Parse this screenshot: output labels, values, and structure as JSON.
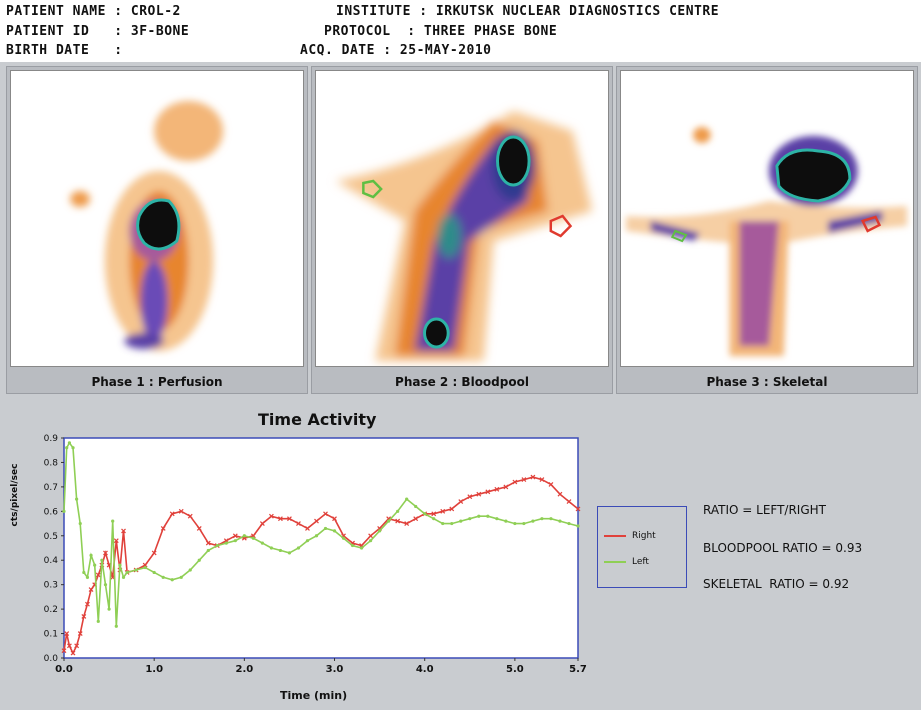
{
  "header": {
    "patient_name": "PATIENT NAME : CROL-2",
    "patient_id": "PATIENT ID   : 3F-BONE",
    "birth_date": "BIRTH DATE   :",
    "institute": "INSTITUTE : IRKUTSK NUCLEAR DIAGNOSTICS CENTRE",
    "protocol": "PROTOCOL  : THREE PHASE BONE",
    "acq_date": "ACQ. DATE : 25-MAY-2010"
  },
  "panels": [
    {
      "label": "Phase 1 : Perfusion"
    },
    {
      "label": "Phase 2 : Bloodpool"
    },
    {
      "label": "Phase 3 : Skeletal"
    }
  ],
  "colors": {
    "right": "#e0413b",
    "left": "#8fcf55",
    "legend_border": "#3b4bb7"
  },
  "chart_data": {
    "type": "line",
    "title": "Time Activity",
    "xlabel": "Time (min)",
    "ylabel": "cts/pixel/sec",
    "xlim": [
      0,
      5.7
    ],
    "ylim": [
      0,
      0.9
    ],
    "x_ticks": [
      "0.0",
      "1.0",
      "2.0",
      "3.0",
      "4.0",
      "5.0",
      "5.7"
    ],
    "x_tick_values": [
      0,
      1,
      2,
      3,
      4,
      5,
      5.7
    ],
    "y_ticks": [
      "0.0",
      "0.1",
      "0.2",
      "0.3",
      "0.4",
      "0.5",
      "0.6",
      "0.7",
      "0.8",
      "0.9"
    ],
    "legend_position": "right",
    "series": [
      {
        "name": "Right",
        "color": "#e0413b",
        "marker": "x",
        "points": [
          [
            0,
            0.03
          ],
          [
            0.03,
            0.1
          ],
          [
            0.06,
            0.05
          ],
          [
            0.1,
            0.02
          ],
          [
            0.14,
            0.05
          ],
          [
            0.18,
            0.1
          ],
          [
            0.22,
            0.17
          ],
          [
            0.26,
            0.22
          ],
          [
            0.3,
            0.28
          ],
          [
            0.34,
            0.3
          ],
          [
            0.38,
            0.34
          ],
          [
            0.42,
            0.38
          ],
          [
            0.46,
            0.43
          ],
          [
            0.5,
            0.38
          ],
          [
            0.54,
            0.33
          ],
          [
            0.58,
            0.48
          ],
          [
            0.62,
            0.36
          ],
          [
            0.66,
            0.52
          ],
          [
            0.7,
            0.35
          ],
          [
            0.8,
            0.36
          ],
          [
            0.9,
            0.38
          ],
          [
            1.0,
            0.43
          ],
          [
            1.1,
            0.53
          ],
          [
            1.2,
            0.59
          ],
          [
            1.3,
            0.6
          ],
          [
            1.4,
            0.58
          ],
          [
            1.5,
            0.53
          ],
          [
            1.6,
            0.47
          ],
          [
            1.7,
            0.46
          ],
          [
            1.8,
            0.48
          ],
          [
            1.9,
            0.5
          ],
          [
            2.0,
            0.49
          ],
          [
            2.1,
            0.5
          ],
          [
            2.2,
            0.55
          ],
          [
            2.3,
            0.58
          ],
          [
            2.4,
            0.57
          ],
          [
            2.5,
            0.57
          ],
          [
            2.6,
            0.55
          ],
          [
            2.7,
            0.53
          ],
          [
            2.8,
            0.56
          ],
          [
            2.9,
            0.59
          ],
          [
            3.0,
            0.57
          ],
          [
            3.1,
            0.5
          ],
          [
            3.2,
            0.47
          ],
          [
            3.3,
            0.46
          ],
          [
            3.4,
            0.5
          ],
          [
            3.5,
            0.53
          ],
          [
            3.6,
            0.57
          ],
          [
            3.7,
            0.56
          ],
          [
            3.8,
            0.55
          ],
          [
            3.9,
            0.57
          ],
          [
            4.0,
            0.59
          ],
          [
            4.1,
            0.59
          ],
          [
            4.2,
            0.6
          ],
          [
            4.3,
            0.61
          ],
          [
            4.4,
            0.64
          ],
          [
            4.5,
            0.66
          ],
          [
            4.6,
            0.67
          ],
          [
            4.7,
            0.68
          ],
          [
            4.8,
            0.69
          ],
          [
            4.9,
            0.7
          ],
          [
            5.0,
            0.72
          ],
          [
            5.1,
            0.73
          ],
          [
            5.2,
            0.74
          ],
          [
            5.3,
            0.73
          ],
          [
            5.4,
            0.71
          ],
          [
            5.5,
            0.67
          ],
          [
            5.6,
            0.64
          ],
          [
            5.7,
            0.61
          ]
        ]
      },
      {
        "name": "Left",
        "color": "#8fcf55",
        "marker": "o",
        "points": [
          [
            0,
            0.6
          ],
          [
            0.03,
            0.86
          ],
          [
            0.06,
            0.88
          ],
          [
            0.1,
            0.86
          ],
          [
            0.14,
            0.65
          ],
          [
            0.18,
            0.55
          ],
          [
            0.22,
            0.35
          ],
          [
            0.26,
            0.33
          ],
          [
            0.3,
            0.42
          ],
          [
            0.34,
            0.38
          ],
          [
            0.38,
            0.15
          ],
          [
            0.42,
            0.4
          ],
          [
            0.46,
            0.3
          ],
          [
            0.5,
            0.2
          ],
          [
            0.54,
            0.56
          ],
          [
            0.58,
            0.13
          ],
          [
            0.62,
            0.38
          ],
          [
            0.66,
            0.33
          ],
          [
            0.7,
            0.35
          ],
          [
            0.8,
            0.36
          ],
          [
            0.9,
            0.37
          ],
          [
            1.0,
            0.35
          ],
          [
            1.1,
            0.33
          ],
          [
            1.2,
            0.32
          ],
          [
            1.3,
            0.33
          ],
          [
            1.4,
            0.36
          ],
          [
            1.5,
            0.4
          ],
          [
            1.6,
            0.44
          ],
          [
            1.7,
            0.46
          ],
          [
            1.8,
            0.47
          ],
          [
            1.9,
            0.48
          ],
          [
            2.0,
            0.5
          ],
          [
            2.1,
            0.49
          ],
          [
            2.2,
            0.47
          ],
          [
            2.3,
            0.45
          ],
          [
            2.4,
            0.44
          ],
          [
            2.5,
            0.43
          ],
          [
            2.6,
            0.45
          ],
          [
            2.7,
            0.48
          ],
          [
            2.8,
            0.5
          ],
          [
            2.9,
            0.53
          ],
          [
            3.0,
            0.52
          ],
          [
            3.1,
            0.49
          ],
          [
            3.2,
            0.46
          ],
          [
            3.3,
            0.45
          ],
          [
            3.4,
            0.48
          ],
          [
            3.5,
            0.52
          ],
          [
            3.6,
            0.56
          ],
          [
            3.7,
            0.6
          ],
          [
            3.8,
            0.65
          ],
          [
            3.9,
            0.62
          ],
          [
            4.0,
            0.59
          ],
          [
            4.1,
            0.57
          ],
          [
            4.2,
            0.55
          ],
          [
            4.3,
            0.55
          ],
          [
            4.4,
            0.56
          ],
          [
            4.5,
            0.57
          ],
          [
            4.6,
            0.58
          ],
          [
            4.7,
            0.58
          ],
          [
            4.8,
            0.57
          ],
          [
            4.9,
            0.56
          ],
          [
            5.0,
            0.55
          ],
          [
            5.1,
            0.55
          ],
          [
            5.2,
            0.56
          ],
          [
            5.3,
            0.57
          ],
          [
            5.4,
            0.57
          ],
          [
            5.5,
            0.56
          ],
          [
            5.6,
            0.55
          ],
          [
            5.7,
            0.54
          ]
        ]
      }
    ]
  },
  "stats": {
    "ratio_def": "RATIO = LEFT/RIGHT",
    "bloodpool": "BLOODPOOL RATIO = 0.93",
    "skeletal": "SKELETAL  RATIO = 0.92"
  }
}
